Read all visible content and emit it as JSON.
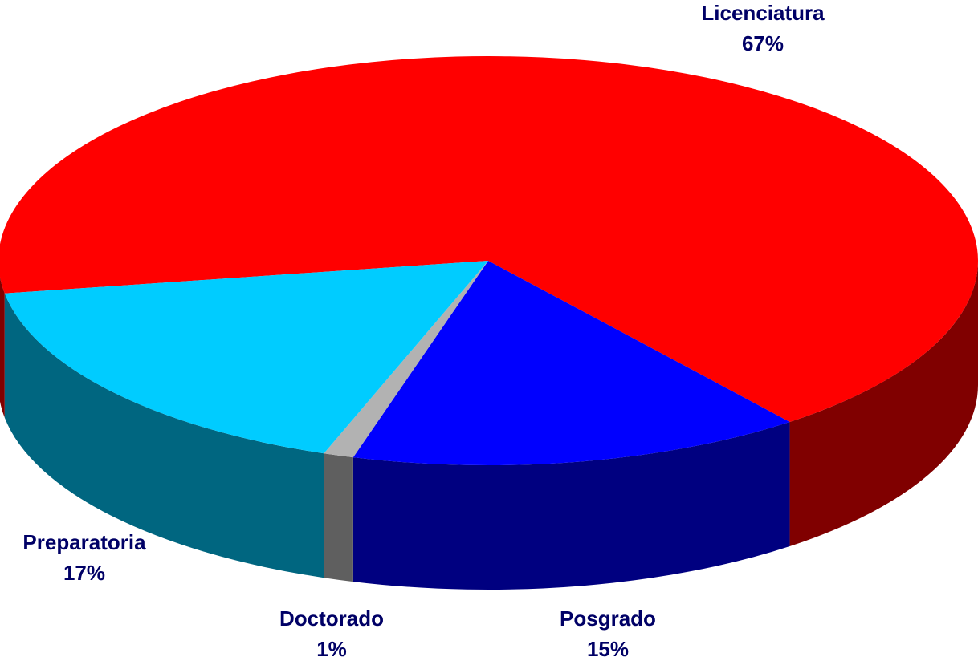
{
  "chart_data": {
    "type": "pie3d",
    "categories": [
      "Licenciatura",
      "Posgrado",
      "Doctorado",
      "Preparatoria"
    ],
    "values": [
      67,
      15,
      1,
      17
    ],
    "value_labels": [
      "67%",
      "15%",
      "1%",
      "17%"
    ],
    "colors": [
      "#ff0000",
      "#0000ff",
      "#b2b2b2",
      "#00ccff"
    ],
    "side_colors": [
      "#800000",
      "#000080",
      "#5f5f5f",
      "#006680"
    ]
  }
}
